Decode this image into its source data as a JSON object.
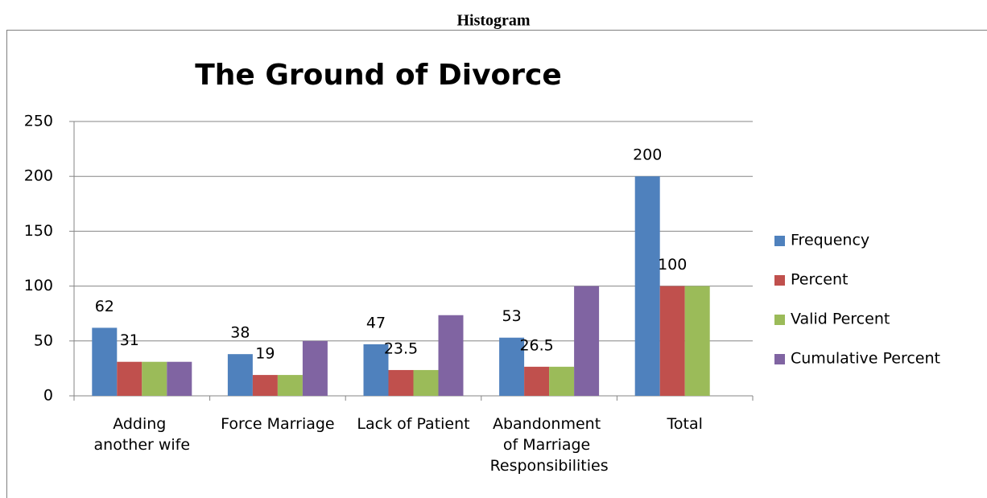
{
  "chart_data": {
    "type": "bar",
    "caption": "Histogram",
    "title": "The Ground of Divorce",
    "categories": [
      "Adding another wife",
      "Force Marriage",
      "Lack of Patient",
      "Abandonment of Marriage Responsibilities",
      "Total"
    ],
    "series": [
      {
        "name": "Frequency",
        "color": "#4f81bd",
        "values": [
          62,
          38,
          47,
          53,
          200
        ],
        "labels": true
      },
      {
        "name": "Percent",
        "color": "#c0504d",
        "values": [
          31,
          19,
          23.5,
          26.5,
          100
        ],
        "labels": true
      },
      {
        "name": "Valid Percent",
        "color": "#9bbb59",
        "values": [
          31,
          19,
          23.5,
          26.5,
          100
        ],
        "labels": false
      },
      {
        "name": "Cumulative Percent",
        "color": "#8064a2",
        "values": [
          31,
          50,
          73.5,
          100,
          null
        ],
        "labels": false
      }
    ],
    "ylim": [
      0,
      250
    ],
    "yticks": [
      0,
      50,
      100,
      150,
      200,
      250
    ],
    "grid": true,
    "legend": "right"
  }
}
